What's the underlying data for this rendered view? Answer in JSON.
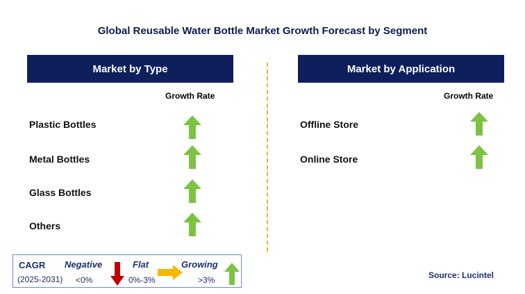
{
  "title": "Global Reusable Water Bottle Market Growth Forecast by Segment",
  "left_panel": {
    "header": "Market by Type",
    "column_label": "Growth Rate",
    "rows": [
      {
        "label": "Plastic Bottles",
        "trend": "growing"
      },
      {
        "label": "Metal Bottles",
        "trend": "growing"
      },
      {
        "label": "Glass Bottles",
        "trend": "growing"
      },
      {
        "label": "Others",
        "trend": "growing"
      }
    ]
  },
  "right_panel": {
    "header": "Market by Application",
    "column_label": "Growth Rate",
    "rows": [
      {
        "label": "Offline Store",
        "trend": "growing"
      },
      {
        "label": "Online Store",
        "trend": "growing"
      }
    ]
  },
  "legend": {
    "cagr_label": "CAGR",
    "period": "(2025-2031)",
    "negative_label": "Negative",
    "negative_range": "<0%",
    "flat_label": "Flat",
    "flat_range": "0%-3%",
    "growing_label": "Growing",
    "growing_range": ">3%"
  },
  "source": "Source: Lucintel",
  "colors": {
    "header_bg": "#0f1f5c",
    "growing": "#7dc242",
    "negative": "#c00000",
    "flat": "#f5b800",
    "divider": "#f2b233"
  },
  "icons": {
    "growing": "green-up-arrow-icon",
    "negative": "red-down-arrow-icon",
    "flat": "yellow-right-arrow-icon"
  }
}
